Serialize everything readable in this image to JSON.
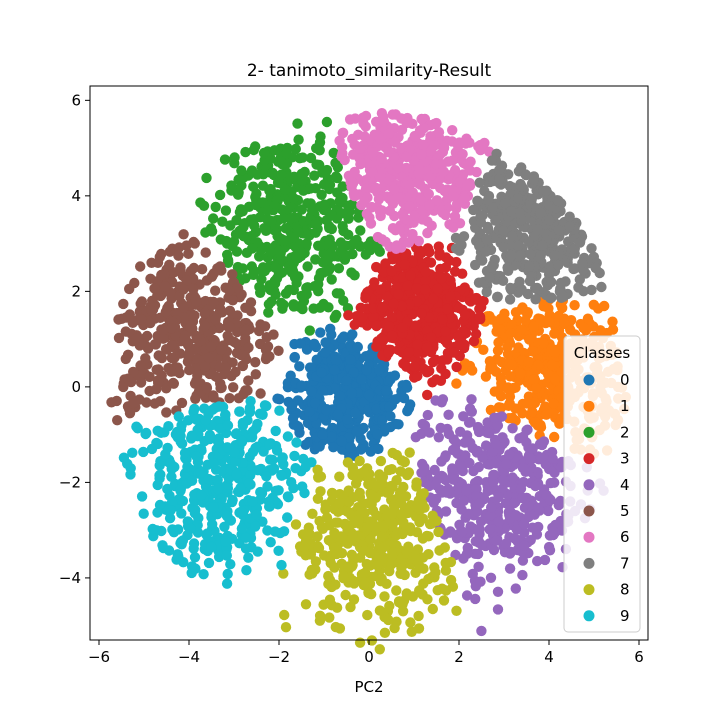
{
  "chart_data": {
    "type": "scatter",
    "title": "2- tanimoto_similarity-Result",
    "xlabel": "PC2",
    "ylabel": "",
    "xlim": [
      -6.2,
      6.2
    ],
    "ylim": [
      -5.3,
      6.3
    ],
    "x_ticks": [
      -6,
      -4,
      -2,
      0,
      2,
      4,
      6
    ],
    "x_tick_labels": [
      "−6",
      "−4",
      "−2",
      "0",
      "2",
      "4",
      "6"
    ],
    "y_ticks": [
      -4,
      -2,
      0,
      2,
      4,
      6
    ],
    "y_tick_labels": [
      "−4",
      "−2",
      "0",
      "2",
      "4",
      "6"
    ],
    "grid": false,
    "legend": {
      "title": "Classes",
      "placement": "right"
    },
    "series": [
      {
        "name": "0",
        "color": "#1f77b4",
        "center": [
          -0.5,
          -0.2
        ],
        "spread": 1.0
      },
      {
        "name": "1",
        "color": "#ff7f0e",
        "center": [
          3.9,
          0.4
        ],
        "spread": 1.25
      },
      {
        "name": "2",
        "color": "#2ca02c",
        "center": [
          -1.7,
          3.3
        ],
        "spread": 1.45
      },
      {
        "name": "3",
        "color": "#d62728",
        "center": [
          1.1,
          1.6
        ],
        "spread": 1.05
      },
      {
        "name": "4",
        "color": "#9467bd",
        "center": [
          2.7,
          -2.1
        ],
        "spread": 1.35
      },
      {
        "name": "5",
        "color": "#8c564b",
        "center": [
          -3.9,
          1.1
        ],
        "spread": 1.35
      },
      {
        "name": "6",
        "color": "#e377c2",
        "center": [
          0.9,
          4.5
        ],
        "spread": 1.25
      },
      {
        "name": "7",
        "color": "#7f7f7f",
        "center": [
          3.7,
          3.3
        ],
        "spread": 1.3
      },
      {
        "name": "8",
        "color": "#bcbd22",
        "center": [
          0.2,
          -3.1
        ],
        "spread": 1.3
      },
      {
        "name": "9",
        "color": "#17becf",
        "center": [
          -3.3,
          -1.9
        ],
        "spread": 1.35
      }
    ]
  }
}
